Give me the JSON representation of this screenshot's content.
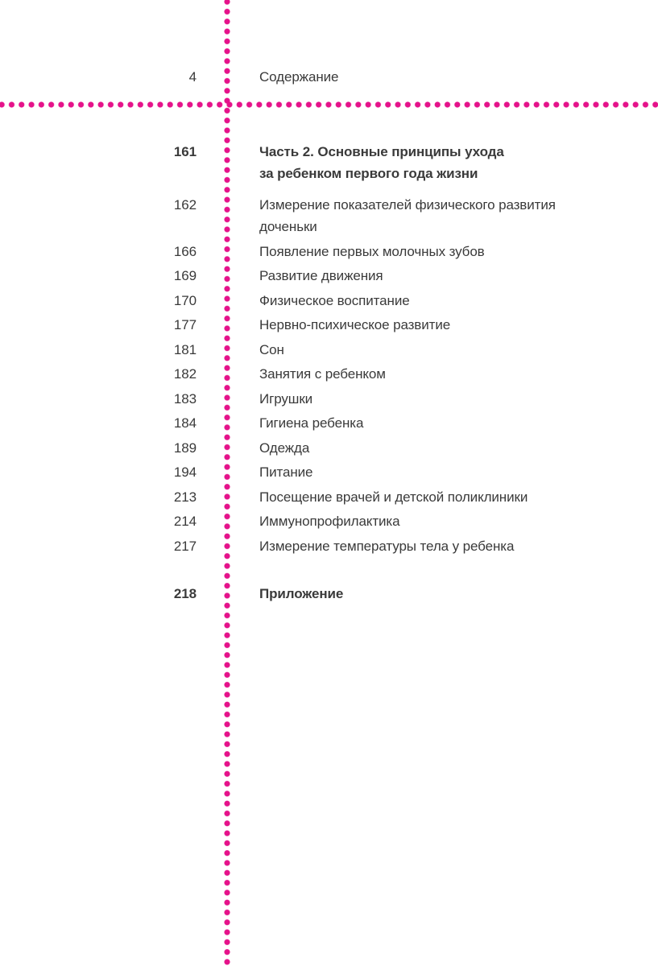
{
  "colors": {
    "accent": "#e5128a",
    "text": "#3a3a3a",
    "background": "#ffffff"
  },
  "header": {
    "page_number": "4",
    "title": "Содержание"
  },
  "toc": {
    "entries": [
      {
        "page": "161",
        "title": "Часть 2. Основные принципы ухода\nза ребенком первого года жизни",
        "section_heading": true
      },
      {
        "page": "162",
        "title": "Измерение показателей физического развития\nдоченьки",
        "section_heading": false
      },
      {
        "page": "166",
        "title": "Появление первых молочных зубов",
        "section_heading": false
      },
      {
        "page": "169",
        "title": "Развитие движения",
        "section_heading": false
      },
      {
        "page": "170",
        "title": "Физическое воспитание",
        "section_heading": false
      },
      {
        "page": "177",
        "title": "Нервно-психическое развитие",
        "section_heading": false
      },
      {
        "page": "181",
        "title": "Сон",
        "section_heading": false
      },
      {
        "page": "182",
        "title": "Занятия с ребенком",
        "section_heading": false
      },
      {
        "page": "183",
        "title": "Игрушки",
        "section_heading": false
      },
      {
        "page": "184",
        "title": "Гигиена ребенка",
        "section_heading": false
      },
      {
        "page": "189",
        "title": "Одежда",
        "section_heading": false
      },
      {
        "page": "194",
        "title": "Питание",
        "section_heading": false
      },
      {
        "page": "213",
        "title": "Посещение врачей и детской поликлиники",
        "section_heading": false
      },
      {
        "page": "214",
        "title": "Иммунопрофилактика",
        "section_heading": false
      },
      {
        "page": "217",
        "title": "Измерение температуры тела у ребенка",
        "section_heading": false
      },
      {
        "page": "218",
        "title": "Приложение",
        "section_heading": true
      }
    ]
  }
}
